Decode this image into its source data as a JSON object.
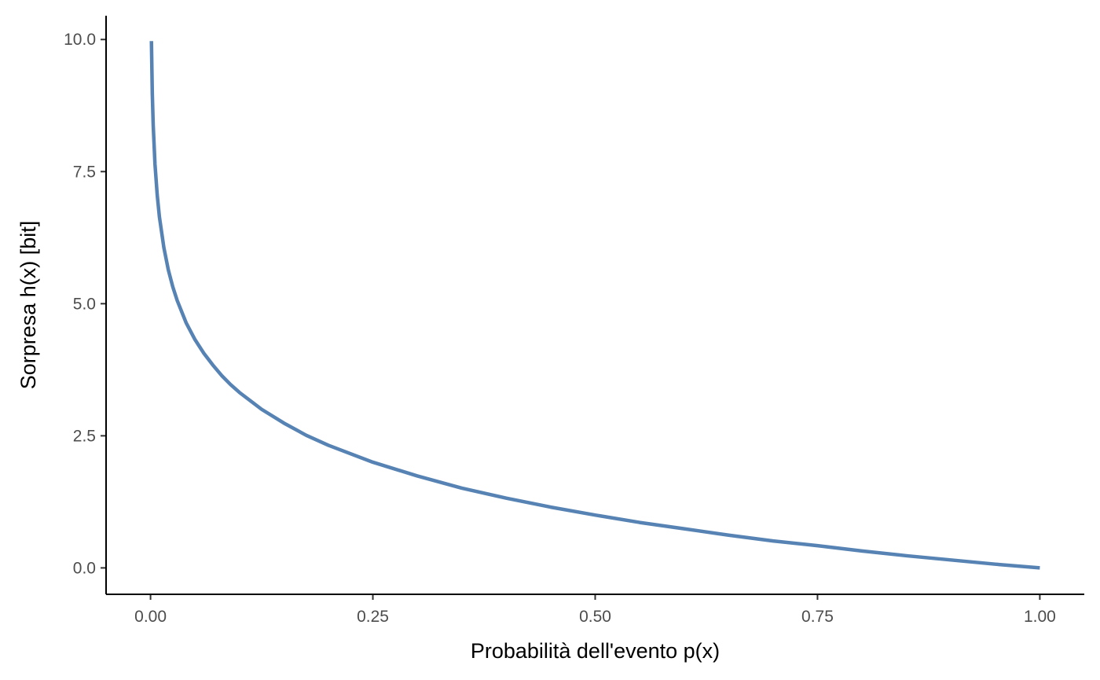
{
  "chart_data": {
    "type": "line",
    "xlabel": "Probabilità dell'evento p(x)",
    "ylabel": "Sorpresa h(x) [bit]",
    "xlim": [
      -0.05,
      1.05
    ],
    "ylim": [
      -0.5,
      10.45
    ],
    "x_ticks": [
      0,
      0.25,
      0.5,
      0.75,
      1
    ],
    "x_tick_labels": [
      "0.00",
      "0.25",
      "0.50",
      "0.75",
      "1.00"
    ],
    "y_ticks": [
      0,
      2.5,
      5,
      7.5,
      10
    ],
    "y_tick_labels": [
      "0.0",
      "2.5",
      "5.0",
      "7.5",
      "10.0"
    ],
    "grid": false,
    "legend": "none",
    "series": [
      {
        "color": "#5683b3",
        "x": [
          0.001,
          0.002,
          0.003,
          0.005,
          0.0075,
          0.01,
          0.015,
          0.02,
          0.025,
          0.03,
          0.04,
          0.05,
          0.06,
          0.07,
          0.08,
          0.09,
          0.1,
          0.125,
          0.15,
          0.175,
          0.2,
          0.25,
          0.3,
          0.35,
          0.4,
          0.45,
          0.5,
          0.55,
          0.6,
          0.65,
          0.7,
          0.75,
          0.8,
          0.85,
          0.9,
          0.95,
          1.0
        ],
        "y": [
          9.97,
          8.97,
          8.38,
          7.64,
          7.06,
          6.64,
          6.06,
          5.64,
          5.32,
          5.06,
          4.64,
          4.32,
          4.06,
          3.84,
          3.64,
          3.47,
          3.32,
          3.0,
          2.74,
          2.51,
          2.32,
          2.0,
          1.74,
          1.51,
          1.32,
          1.15,
          1.0,
          0.86,
          0.74,
          0.62,
          0.51,
          0.42,
          0.32,
          0.23,
          0.15,
          0.07,
          0.0
        ]
      }
    ]
  }
}
